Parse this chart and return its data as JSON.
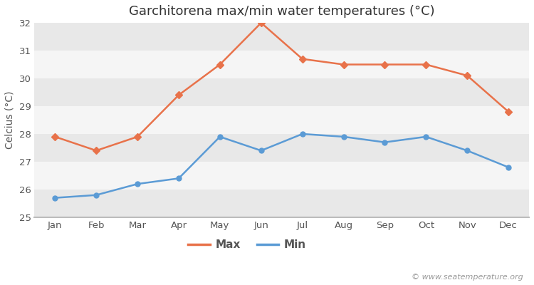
{
  "title": "Garchitorena max/min water temperatures (°C)",
  "ylabel": "Celcius (°C)",
  "months": [
    "Jan",
    "Feb",
    "Mar",
    "Apr",
    "May",
    "Jun",
    "Jul",
    "Aug",
    "Sep",
    "Oct",
    "Nov",
    "Dec"
  ],
  "max_temps": [
    27.9,
    27.4,
    27.9,
    29.4,
    30.5,
    32.0,
    30.7,
    30.5,
    30.5,
    30.5,
    30.1,
    28.8
  ],
  "min_temps": [
    25.7,
    25.8,
    26.2,
    26.4,
    27.9,
    27.4,
    28.0,
    27.9,
    27.7,
    27.9,
    27.4,
    26.8
  ],
  "max_color": "#e8724a",
  "min_color": "#5b9bd5",
  "fig_bg_color": "#ffffff",
  "plot_bg_color": "#ffffff",
  "band_color_dark": "#e8e8e8",
  "band_color_light": "#f5f5f5",
  "ylim": [
    25,
    32
  ],
  "yticks": [
    25,
    26,
    27,
    28,
    29,
    30,
    31,
    32
  ],
  "watermark": "© www.seatemperature.org",
  "legend_labels": [
    "Max",
    "Min"
  ],
  "title_fontsize": 13,
  "label_fontsize": 10,
  "tick_fontsize": 9.5,
  "watermark_fontsize": 8,
  "marker_size": 5,
  "linewidth": 1.8
}
